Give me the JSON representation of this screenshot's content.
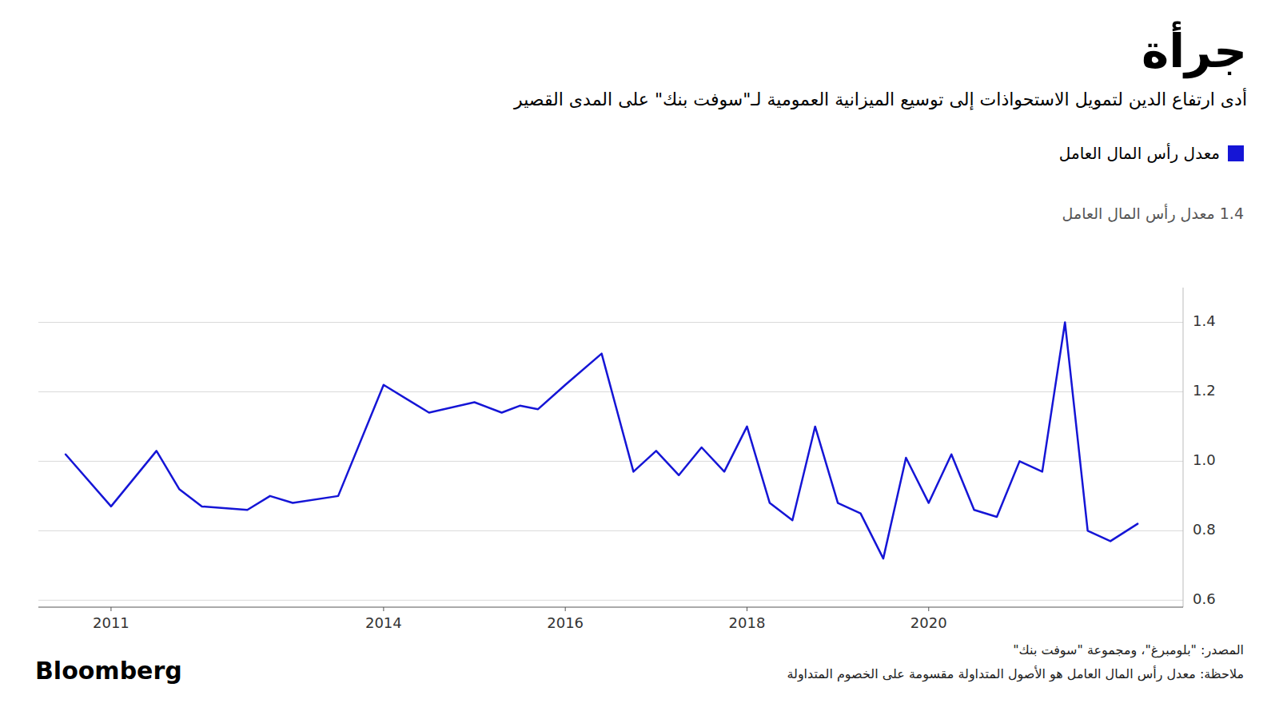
{
  "chart_data": {
    "type": "line",
    "title": "جرأة",
    "subtitle": "أدى ارتفاع الدين لتمويل الاستحواذات إلى توسيع الميزانية العمومية لـ\"سوفت بنك\" على المدى القصير",
    "y_label": "1.4 معدل رأس المال العامل",
    "source": "المصدر: \"بلومبرغ\"، ومجموعة \"سوفت بنك\"",
    "note": "ملاحظة: معدل رأس المال العامل هو الأصول المتداولة مقسومة على الخصوم المتداولة",
    "credit": "Bloomberg",
    "x": [
      2010.5,
      2011.0,
      2011.5,
      2011.75,
      2012.0,
      2012.5,
      2012.75,
      2013.0,
      2013.5,
      2014.0,
      2014.5,
      2015.0,
      2015.3,
      2015.5,
      2015.7,
      2016.0,
      2016.4,
      2016.75,
      2017.0,
      2017.25,
      2017.5,
      2017.75,
      2018.0,
      2018.25,
      2018.5,
      2018.75,
      2019.0,
      2019.25,
      2019.5,
      2019.75,
      2020.0,
      2020.25,
      2020.5,
      2020.75,
      2021.0,
      2021.25,
      2021.5,
      2021.75,
      2022.0,
      2022.3
    ],
    "series": [
      {
        "name": "معدل رأس المال العامل",
        "color": "#1515d6",
        "values": [
          1.02,
          0.87,
          1.03,
          0.92,
          0.87,
          0.86,
          0.9,
          0.88,
          0.9,
          1.22,
          1.14,
          1.17,
          1.14,
          1.16,
          1.15,
          1.22,
          1.31,
          0.97,
          1.03,
          0.96,
          1.04,
          0.97,
          1.1,
          0.88,
          0.83,
          1.1,
          0.88,
          0.85,
          0.72,
          1.01,
          0.88,
          1.02,
          0.86,
          0.84,
          1.0,
          0.97,
          1.4,
          0.8,
          0.77,
          0.82
        ]
      }
    ],
    "xlim": [
      2010.2,
      2022.8
    ],
    "xticks": [
      2011,
      2014,
      2016,
      2018,
      2020
    ],
    "ylim": [
      0.58,
      1.5
    ],
    "yticks": [
      0.6,
      0.8,
      {
        "value": 1.0,
        "label": "1.0"
      },
      1.2,
      1.4
    ],
    "grid": true,
    "legend": "top-right"
  }
}
